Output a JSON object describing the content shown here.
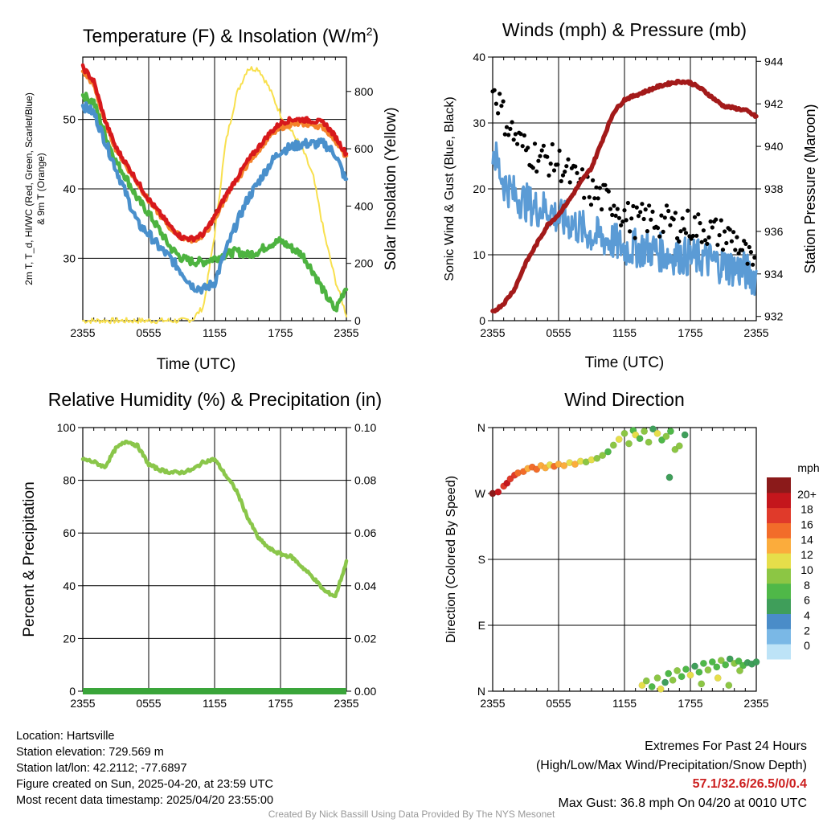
{
  "colors": {
    "t2m_red": "#d7191c",
    "t9m_orange": "#f4822a",
    "td_green": "#4db340",
    "hiwc_blue": "#4a90cc",
    "insolation_yellow": "#f8e04e",
    "sonic_wind_blue": "#5b9bd5",
    "gust_black": "#000000",
    "pressure_maroon": "#a31a1a",
    "rh_green": "#8ac64a",
    "precip_green": "#3aa53a"
  },
  "panels": {
    "temp": {
      "title_pre": "Temperature (F) & Insolation (W/m",
      "title_sup": "2",
      "title_post": ")",
      "xlabel": "Time (UTC)",
      "ylabel": "2m T, T_d, HI/WC (Red, Green, Scarlet/Blue) & 9m T (Orange)",
      "ylabel2": "Solar Insolation (Yellow)"
    },
    "wind": {
      "title": "Winds (mph) & Pressure (mb)",
      "xlabel": "Time (UTC)",
      "ylabel": "Sonic Wind & Gust (Blue, Black)",
      "ylabel2": "Station Pressure (Maroon)"
    },
    "rh": {
      "title": "Relative Humidity (%) & Precipitation (in)",
      "ylabel": "Percent & Precipitation"
    },
    "dir": {
      "title": "Wind Direction",
      "ylabel": "Direction (Colored By Speed)",
      "colorbar_title": "mph"
    }
  },
  "chart_data": [
    {
      "type": "line",
      "title": "Temperature (F) & Insolation (W/m2)",
      "xlabel": "Time (UTC)",
      "x_ticks": [
        "2355",
        "0555",
        "1155",
        "1755",
        "2355"
      ],
      "y_ticks": [
        30,
        40,
        50
      ],
      "ylim": [
        21,
        59
      ],
      "y2label": "Solar Insolation (Yellow)",
      "y2_ticks": [
        0,
        200,
        400,
        600,
        800
      ],
      "y2lim": [
        0,
        920
      ],
      "x_hours": [
        0,
        1,
        2,
        3,
        4,
        5,
        6,
        7,
        8,
        9,
        10,
        11,
        12,
        13,
        14,
        15,
        16,
        17,
        18,
        19,
        20,
        21,
        22,
        23,
        24
      ],
      "series": [
        {
          "name": "2m T",
          "values": [
            57.5,
            55.5,
            50,
            46,
            43.5,
            41,
            38.5,
            36.5,
            34.5,
            33,
            32.8,
            33.5,
            36,
            39,
            41.5,
            44,
            46,
            48,
            49.5,
            50,
            50,
            49.8,
            49.5,
            47.5,
            45
          ]
        },
        {
          "name": "9m T",
          "values": [
            57,
            55,
            49.8,
            45.8,
            43.2,
            40.8,
            38.3,
            36.3,
            34.3,
            33,
            32.6,
            33.3,
            35.6,
            38.7,
            41.1,
            43.6,
            45.6,
            47.6,
            48.8,
            49.3,
            49.4,
            49.2,
            48.8,
            47,
            44.5
          ]
        },
        {
          "name": "HI/WC",
          "values": [
            52,
            51,
            47,
            43,
            39,
            35,
            33.5,
            31.5,
            30,
            28,
            26,
            25.5,
            26.5,
            31,
            35,
            38.5,
            41,
            43.5,
            45.5,
            46,
            46.5,
            46.5,
            46.5,
            45,
            41
          ]
        },
        {
          "name": "T_d",
          "values": [
            53.5,
            52.5,
            48,
            44,
            41.5,
            38.5,
            36.5,
            34,
            31.5,
            30,
            29.5,
            29.5,
            30,
            30.5,
            31,
            30.5,
            31,
            32,
            32.5,
            31.5,
            30.5,
            28,
            25,
            22.5,
            26
          ]
        },
        {
          "name": "Solar Insolation",
          "axis": "right",
          "values": [
            0,
            0,
            0,
            0,
            0,
            0,
            0,
            0,
            0,
            0,
            5,
            50,
            300,
            620,
            790,
            880,
            880,
            810,
            720,
            660,
            600,
            500,
            300,
            140,
            20
          ]
        }
      ]
    },
    {
      "type": "line",
      "title": "Winds (mph) & Pressure (mb)",
      "xlabel": "Time (UTC)",
      "x_ticks": [
        "2355",
        "0555",
        "1155",
        "1755",
        "2355"
      ],
      "y_ticks": [
        0,
        10,
        20,
        30,
        40
      ],
      "ylim": [
        0,
        40
      ],
      "y2_ticks": [
        932,
        934,
        936,
        938,
        940,
        942,
        944
      ],
      "y2lim": [
        931.8,
        944.2
      ],
      "x_hours": [
        0,
        1,
        2,
        3,
        4,
        5,
        6,
        7,
        8,
        9,
        10,
        11,
        12,
        13,
        14,
        15,
        16,
        17,
        18,
        19,
        20,
        21,
        22,
        23,
        24
      ],
      "series": [
        {
          "name": "Sonic Wind",
          "values": [
            26,
            21,
            19,
            18,
            17,
            17,
            15.5,
            15,
            14,
            13,
            12.5,
            12,
            11,
            11,
            11,
            10.5,
            10,
            10,
            9.5,
            9.5,
            9,
            8.5,
            8,
            7.5,
            6.5
          ]
        },
        {
          "name": "Gust",
          "type": "scatter",
          "values": [
            36,
            31,
            28,
            26,
            25,
            24.5,
            24,
            22,
            21,
            19.5,
            18.5,
            18,
            16,
            15,
            15.5,
            15,
            15,
            14.5,
            14.5,
            14,
            13.5,
            13,
            12.5,
            10,
            7
          ]
        },
        {
          "name": "Station Pressure",
          "axis": "right",
          "values": [
            932.2,
            932.6,
            933.3,
            934.5,
            935.4,
            936.3,
            936.8,
            937.5,
            938.3,
            939.0,
            940.3,
            941.6,
            942.2,
            942.4,
            942.6,
            942.8,
            942.95,
            943.05,
            943.0,
            942.7,
            942.3,
            941.9,
            941.8,
            941.7,
            941.4
          ]
        }
      ]
    },
    {
      "type": "line",
      "title": "Relative Humidity (%) & Precipitation (in)",
      "x_ticks": [
        "2355",
        "0555",
        "1155",
        "1755",
        "2355"
      ],
      "y_ticks": [
        0,
        20,
        40,
        60,
        80,
        100
      ],
      "ylim": [
        0,
        100
      ],
      "y2_ticks": [
        "0.00",
        "0.02",
        "0.04",
        "0.06",
        "0.08",
        "0.10"
      ],
      "y2lim": [
        0,
        0.1
      ],
      "x_hours": [
        0,
        1,
        2,
        3,
        4,
        5,
        6,
        7,
        8,
        9,
        10,
        11,
        12,
        13,
        14,
        15,
        16,
        17,
        18,
        19,
        20,
        21,
        22,
        23,
        24
      ],
      "series": [
        {
          "name": "Relative Humidity",
          "values": [
            88,
            87,
            85,
            92,
            95,
            93,
            86,
            84,
            83,
            83,
            84,
            87,
            88,
            82,
            76,
            66,
            58,
            54,
            52,
            51,
            47,
            43,
            38,
            36,
            49
          ]
        },
        {
          "name": "Precipitation",
          "axis": "right",
          "values": [
            0,
            0,
            0,
            0,
            0,
            0,
            0,
            0,
            0,
            0,
            0,
            0,
            0,
            0,
            0,
            0,
            0,
            0,
            0,
            0,
            0,
            0,
            0,
            0,
            0
          ]
        }
      ]
    },
    {
      "type": "scatter",
      "title": "Wind Direction",
      "x_ticks": [
        "2355",
        "0555",
        "1155",
        "1755",
        "2355"
      ],
      "y_ticks": [
        "N",
        "E",
        "S",
        "W",
        "N"
      ],
      "ylim": [
        0,
        360
      ],
      "colorbar": {
        "title": "mph",
        "labels": [
          "0",
          "2",
          "4",
          "6",
          "8",
          "10",
          "12",
          "14",
          "16",
          "18",
          "20+"
        ],
        "colors": [
          "#bde3f7",
          "#7ab8e6",
          "#4a8cc8",
          "#3f9e5a",
          "#4fb848",
          "#8cc644",
          "#e6de4a",
          "#fbac3c",
          "#f26c2a",
          "#e03a2a",
          "#c4161c",
          "#8b1a1a"
        ]
      },
      "series": [
        {
          "name": "Direction",
          "points": [
            [
              0.0,
              270,
              20
            ],
            [
              0.5,
              272,
              19
            ],
            [
              1.0,
              280,
              16
            ],
            [
              1.3,
              284,
              18
            ],
            [
              1.6,
              290,
              17
            ],
            [
              2.0,
              295,
              16
            ],
            [
              2.3,
              298,
              15
            ],
            [
              2.8,
              300,
              14
            ],
            [
              3.2,
              304,
              13
            ],
            [
              3.6,
              306,
              15
            ],
            [
              4.0,
              303,
              14
            ],
            [
              4.4,
              308,
              12
            ],
            [
              4.8,
              305,
              13
            ],
            [
              5.2,
              309,
              11
            ],
            [
              5.6,
              307,
              14
            ],
            [
              6.0,
              310,
              13
            ],
            [
              6.5,
              308,
              12
            ],
            [
              7.0,
              312,
              11
            ],
            [
              7.5,
              310,
              12
            ],
            [
              8.0,
              314,
              10
            ],
            [
              8.5,
              313,
              9
            ],
            [
              9.0,
              316,
              11
            ],
            [
              9.5,
              318,
              8
            ],
            [
              10.0,
              322,
              9
            ],
            [
              10.5,
              327,
              7
            ],
            [
              11.0,
              336,
              8
            ],
            [
              11.5,
              344,
              10
            ],
            [
              12.0,
              352,
              9
            ],
            [
              12.4,
              338,
              8
            ],
            [
              12.8,
              356,
              6
            ],
            [
              13.0,
              350,
              10
            ],
            [
              13.4,
              345,
              7
            ],
            [
              13.8,
              355,
              8
            ],
            [
              14.2,
              340,
              9
            ],
            [
              14.6,
              358,
              5
            ],
            [
              15.0,
              352,
              10
            ],
            [
              15.4,
              343,
              6
            ],
            [
              15.8,
              348,
              8
            ],
            [
              16.2,
              355,
              7
            ],
            [
              16.6,
              330,
              9
            ],
            [
              16.1,
              292,
              4
            ],
            [
              17.0,
              335,
              8
            ],
            [
              17.5,
              350,
              5
            ],
            [
              13.6,
              8,
              10
            ],
            [
              14.0,
              14,
              8
            ],
            [
              14.5,
              6,
              7
            ],
            [
              15.0,
              18,
              9
            ],
            [
              15.3,
              3,
              10
            ],
            [
              15.7,
              12,
              4
            ],
            [
              16.0,
              24,
              6
            ],
            [
              16.4,
              15,
              9
            ],
            [
              16.8,
              28,
              8
            ],
            [
              17.2,
              20,
              7
            ],
            [
              17.6,
              30,
              6
            ],
            [
              18.0,
              22,
              10
            ],
            [
              18.4,
              34,
              5
            ],
            [
              18.8,
              26,
              7
            ],
            [
              19.2,
              38,
              6
            ],
            [
              19.6,
              29,
              8
            ],
            [
              20.0,
              40,
              6
            ],
            [
              20.4,
              33,
              7
            ],
            [
              20.8,
              42,
              8
            ],
            [
              21.2,
              36,
              6
            ],
            [
              21.6,
              44,
              5
            ],
            [
              22.0,
              38,
              8
            ],
            [
              22.4,
              41,
              6
            ],
            [
              22.8,
              35,
              7
            ],
            [
              23.2,
              39,
              5
            ],
            [
              23.6,
              37,
              4
            ],
            [
              24.0,
              40,
              4
            ],
            [
              19.0,
              10,
              9
            ],
            [
              20.5,
              18,
              10
            ],
            [
              21.5,
              8,
              9
            ],
            [
              22.5,
              28,
              8
            ]
          ]
        }
      ]
    }
  ],
  "info": {
    "location": "Location: Hartsville",
    "elevation": "Station elevation: 729.569 m",
    "latlon": "Station lat/lon: 42.2112; -77.6897",
    "created": "Figure created on Sun, 2025-04-20, at 23:59 UTC",
    "recent": "Most recent data timestamp: 2025/04/20 23:55:00"
  },
  "extremes": {
    "heading": "Extremes For Past 24 Hours",
    "fields": "(High/Low/Max Wind/Precipitation/Snow Depth)",
    "values": "57.1/32.6/26.5/0/0.4",
    "max_gust": "Max Gust: 36.8 mph On 04/20 at 0010 UTC"
  },
  "credit": "Created By Nick Bassill Using Data Provided By The NYS Mesonet"
}
